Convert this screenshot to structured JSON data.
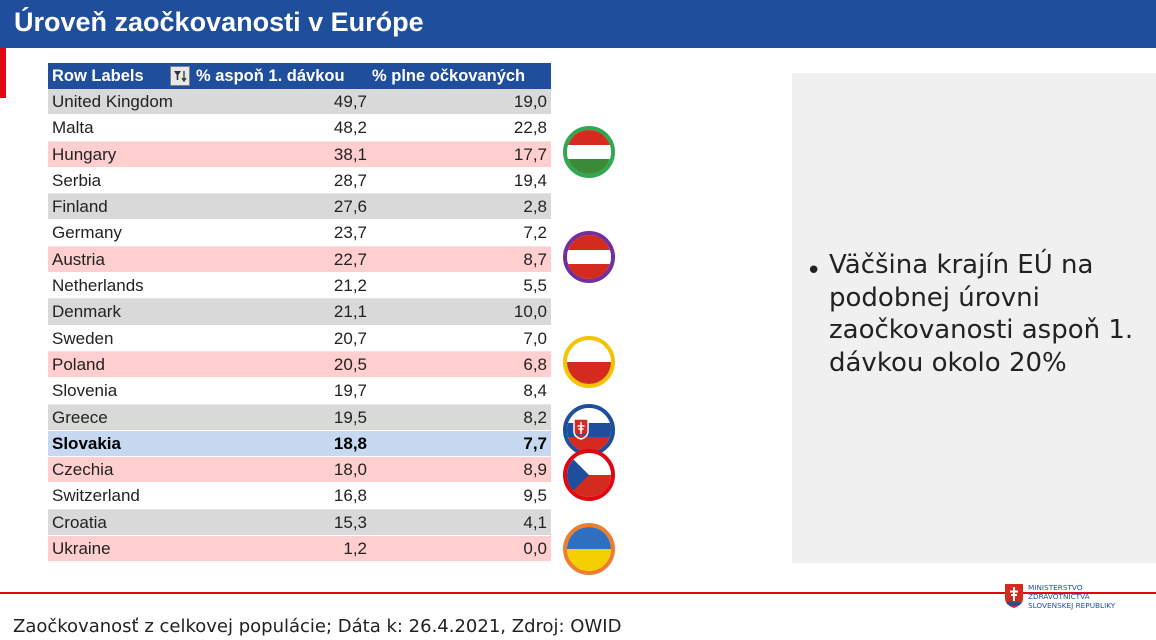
{
  "header": {
    "title": "Úroveň zaočkovanosti v Európe"
  },
  "table": {
    "columns": [
      "Row Labels",
      "% aspoň 1. dávkou",
      "% plne očkovaných"
    ],
    "rows": [
      {
        "country": "United Kingdom",
        "first": "49,7",
        "full": "19,0",
        "style": "gray"
      },
      {
        "country": "Malta",
        "first": "48,2",
        "full": "22,8",
        "style": "white"
      },
      {
        "country": "Hungary",
        "first": "38,1",
        "full": "17,7",
        "style": "pink"
      },
      {
        "country": "Serbia",
        "first": "28,7",
        "full": "19,4",
        "style": "white"
      },
      {
        "country": "Finland",
        "first": "27,6",
        "full": "2,8",
        "style": "gray"
      },
      {
        "country": "Germany",
        "first": "23,7",
        "full": "7,2",
        "style": "white"
      },
      {
        "country": "Austria",
        "first": "22,7",
        "full": "8,7",
        "style": "pink"
      },
      {
        "country": "Netherlands",
        "first": "21,2",
        "full": "5,5",
        "style": "white"
      },
      {
        "country": "Denmark",
        "first": "21,1",
        "full": "10,0",
        "style": "gray"
      },
      {
        "country": "Sweden",
        "first": "20,7",
        "full": "7,0",
        "style": "white"
      },
      {
        "country": "Poland",
        "first": "20,5",
        "full": "6,8",
        "style": "pink"
      },
      {
        "country": "Slovenia",
        "first": "19,7",
        "full": "8,4",
        "style": "white"
      },
      {
        "country": "Greece",
        "first": "19,5",
        "full": "8,2",
        "style": "gray"
      },
      {
        "country": "Slovakia",
        "first": "18,8",
        "full": "7,7",
        "style": "blue"
      },
      {
        "country": "Czechia",
        "first": "18,0",
        "full": "8,9",
        "style": "pink"
      },
      {
        "country": "Switzerland",
        "first": "16,8",
        "full": "9,5",
        "style": "white"
      },
      {
        "country": "Croatia",
        "first": "15,3",
        "full": "4,1",
        "style": "gray"
      },
      {
        "country": "Ukraine",
        "first": "1,2",
        "full": "0,0",
        "style": "pink"
      }
    ]
  },
  "panel": {
    "bullet": "Väčšina krajín EÚ na podobnej úrovni zaočkovanosti aspoň 1. dávkou okolo 20%"
  },
  "footer": {
    "source": "Zaočkovanosť z celkovej populácie; Dáta k: 26.4.2021, Zdroj: OWID"
  },
  "ministry": {
    "line1": "MINISTERSTVO",
    "line2": "ZDRAVOTNÍCTVA",
    "line3": "SLOVENSKEJ REPUBLIKY"
  },
  "colors": {
    "header": "#1f4e9c",
    "accent_red": "#e20613",
    "highlight_row": "#c6d9f1",
    "pink_row": "#ffcfcf",
    "gray_row": "#d9d9d9"
  },
  "icons": [
    "filter-sort-icon",
    "hungary-flag-icon",
    "austria-flag-icon",
    "poland-flag-icon",
    "slovakia-flag-icon",
    "czechia-flag-icon",
    "ukraine-flag-icon",
    "slovak-emblem-icon"
  ]
}
